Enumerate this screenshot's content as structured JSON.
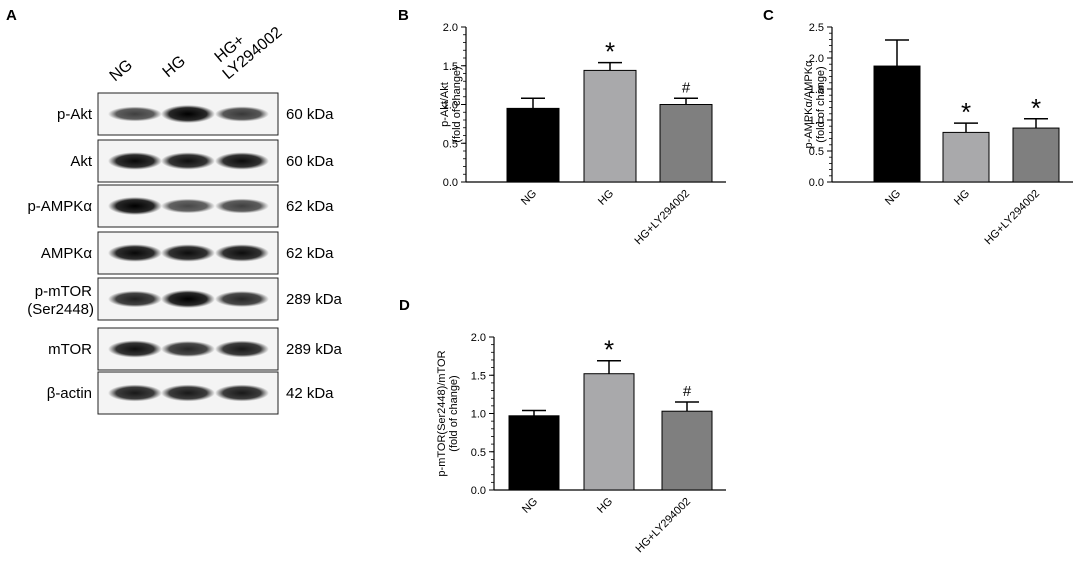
{
  "panel_a": {
    "letter": "A",
    "lanes": [
      "NG",
      "HG",
      "HG+",
      "LY294002"
    ],
    "blots": [
      {
        "label": "p-Akt",
        "kda": "60 kDa",
        "bands": [
          0.6,
          1.0,
          0.65
        ]
      },
      {
        "label": "Akt",
        "kda": "60 kDa",
        "bands": [
          0.95,
          0.9,
          0.92
        ]
      },
      {
        "label": "p-AMPKα",
        "kda": "62 kDa",
        "bands": [
          1.0,
          0.55,
          0.6
        ]
      },
      {
        "label": "AMPKα",
        "kda": "62 kDa",
        "bands": [
          0.95,
          0.92,
          0.93
        ]
      },
      {
        "label": "p-mTOR",
        "label2": "(Ser2448)",
        "kda": "289 kDa",
        "bands": [
          0.8,
          1.0,
          0.75
        ]
      },
      {
        "label": "mTOR",
        "kda": "289 kDa",
        "bands": [
          0.9,
          0.75,
          0.85
        ]
      },
      {
        "label": "β-actin",
        "kda": "42 kDa",
        "bands": [
          0.85,
          0.85,
          0.85
        ]
      }
    ]
  },
  "chart_data": [
    {
      "id": "B",
      "type": "bar",
      "letter": "B",
      "categories": [
        "NG",
        "HG",
        "HG+LY294002"
      ],
      "values": [
        0.95,
        1.44,
        1.0
      ],
      "errors": [
        0.13,
        0.1,
        0.08
      ],
      "colors": [
        "#000000",
        "#a9a9ab",
        "#7f7f7f"
      ],
      "annotations": [
        "",
        "*",
        "#"
      ],
      "ylabel": "p-Akt/Akt",
      "ylabel2": "(fold of change)",
      "ylim": [
        0,
        2.0
      ],
      "yticks": [
        "0.0",
        "0.5",
        "1.0",
        "1.5",
        "2.0"
      ],
      "tick_values": [
        0,
        0.5,
        1.0,
        1.5,
        2.0
      ]
    },
    {
      "id": "C",
      "type": "bar",
      "letter": "C",
      "categories": [
        "NG",
        "HG",
        "HG+LY294002"
      ],
      "values": [
        1.87,
        0.8,
        0.87
      ],
      "errors": [
        0.42,
        0.15,
        0.15
      ],
      "colors": [
        "#000000",
        "#a9a9ab",
        "#7f7f7f"
      ],
      "annotations": [
        "",
        "*",
        "*"
      ],
      "ylabel": "p-AMPKα/AMPKα",
      "ylabel2": "(fold of change)",
      "ylim": [
        0,
        2.5
      ],
      "yticks": [
        "0.0",
        "0.5",
        "1.0",
        "1.5",
        "2.0",
        "2.5"
      ],
      "tick_values": [
        0,
        0.5,
        1.0,
        1.5,
        2.0,
        2.5
      ]
    },
    {
      "id": "D",
      "type": "bar",
      "letter": "D",
      "categories": [
        "NG",
        "HG",
        "HG+LY294002"
      ],
      "values": [
        0.97,
        1.52,
        1.03
      ],
      "errors": [
        0.07,
        0.17,
        0.12
      ],
      "colors": [
        "#000000",
        "#a9a9ab",
        "#7f7f7f"
      ],
      "annotations": [
        "",
        "*",
        "#"
      ],
      "ylabel": "p-mTOR(Ser2448)/mTOR",
      "ylabel2": "(fold of change)",
      "ylim": [
        0,
        2.0
      ],
      "yticks": [
        "0.0",
        "0.5",
        "1.0",
        "1.5",
        "2.0"
      ],
      "tick_values": [
        0,
        0.5,
        1.0,
        1.5,
        2.0
      ]
    }
  ]
}
